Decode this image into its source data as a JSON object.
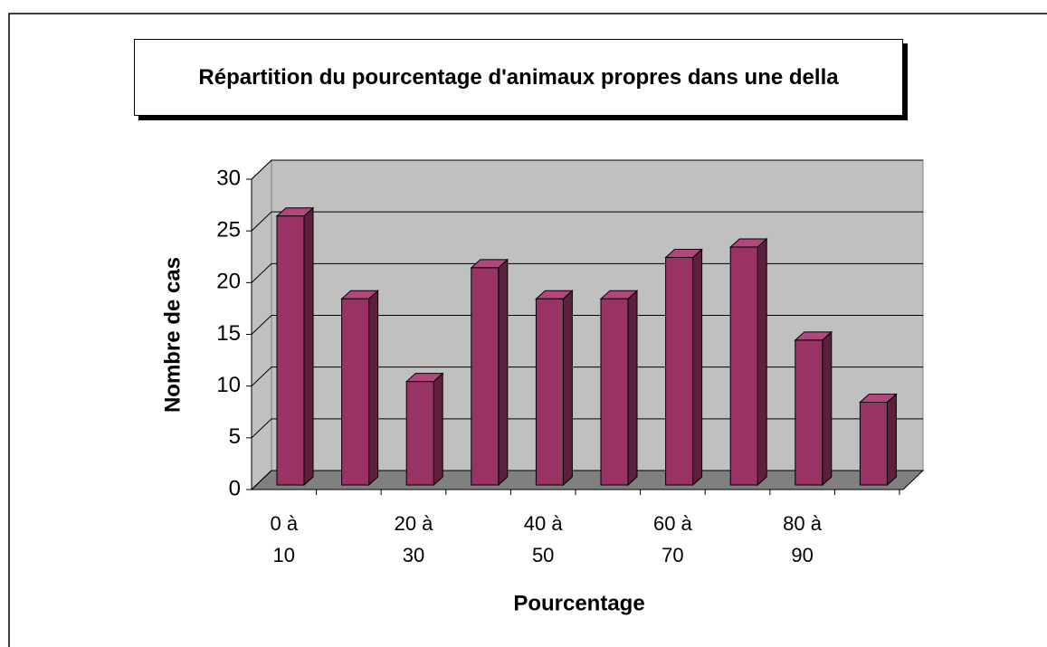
{
  "chart_data": {
    "type": "bar3d",
    "title": "Répartition du pourcentage d'animaux propres dans une della",
    "xlabel": "Pourcentage",
    "ylabel": "Nombre de cas",
    "categories": [
      "0 à 10",
      null,
      "20 à 30",
      null,
      "40 à 50",
      null,
      "60 à 70",
      null,
      "80 à 90",
      null
    ],
    "values": [
      26,
      18,
      10,
      21,
      18,
      18,
      22,
      23,
      14,
      8
    ],
    "color": "#993366",
    "ylim": [
      0,
      30
    ],
    "yticks": [
      0,
      5,
      10,
      15,
      20,
      25,
      30
    ],
    "grid": true
  }
}
